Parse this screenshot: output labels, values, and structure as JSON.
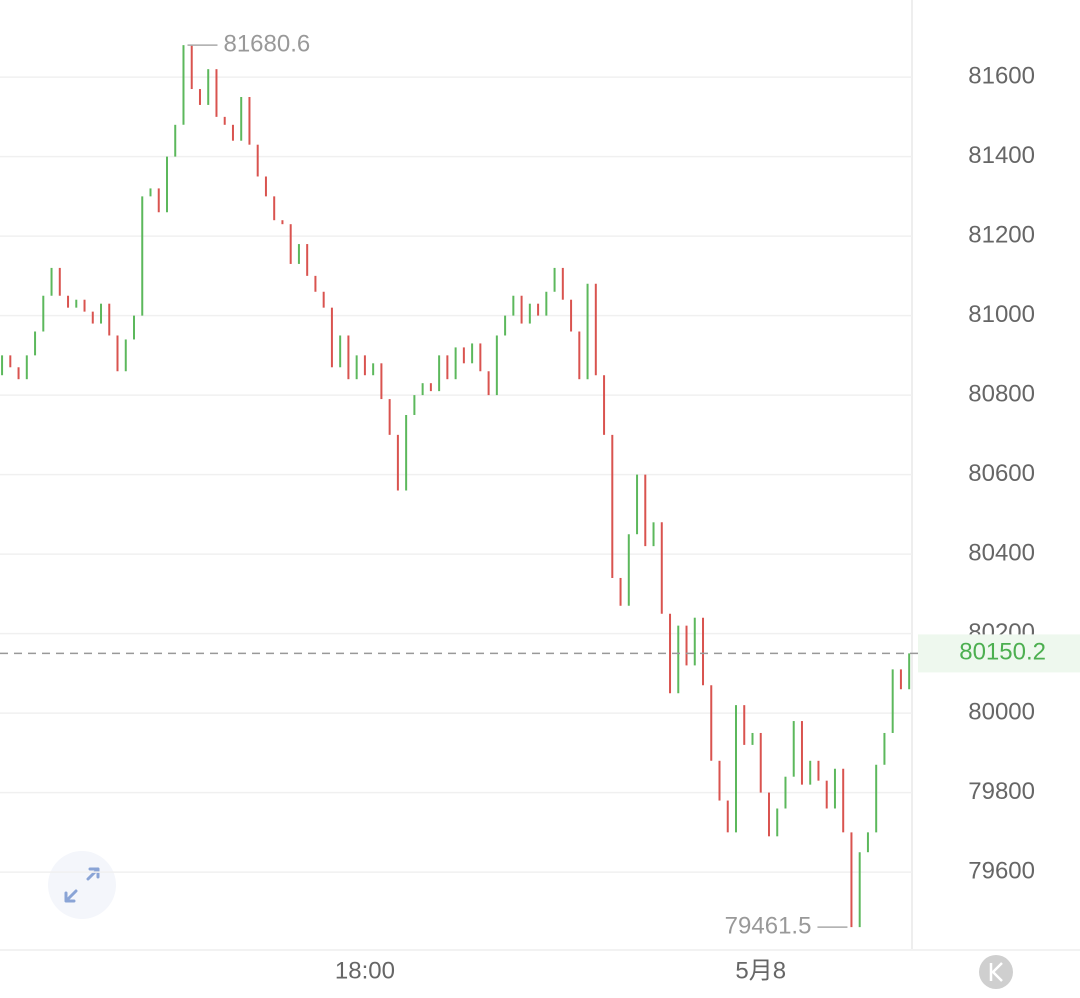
{
  "chart_data": {
    "type": "candlestick",
    "open": [
      80850,
      80900,
      80870,
      80840,
      80900,
      80960,
      81050,
      81120,
      81050,
      81020,
      81040,
      81010,
      80980,
      81030,
      80950,
      80860,
      80940,
      81000,
      81300,
      81320,
      81260,
      81400,
      81480,
      81680.6,
      81570,
      81530,
      81620,
      81500,
      81480,
      81440,
      81550,
      81430,
      81350,
      81300,
      81240,
      81230,
      81130,
      81180,
      81100,
      81060,
      81020,
      80870,
      80950,
      80840,
      80900,
      80850,
      80880,
      80790,
      80700,
      80560,
      80750,
      80800,
      80830,
      80810,
      80900,
      80840,
      80920,
      80880,
      80930,
      80860,
      80800,
      80950,
      81000,
      81050,
      80980,
      81030,
      81000,
      81060,
      81120,
      81040,
      80960,
      80840,
      81080,
      80850,
      80700,
      80340,
      80270,
      80450,
      80600,
      80420,
      80480,
      80250,
      80050,
      80220,
      80120,
      80240,
      80070,
      79880,
      79780,
      79700,
      80020,
      79920,
      79950,
      79800,
      79690,
      79760,
      79840,
      79980,
      79820,
      79880,
      79830,
      79760,
      79860,
      79700,
      79461.5,
      79650,
      79700,
      79870,
      79950,
      80110,
      80060
    ],
    "close": [
      80900,
      80870,
      80840,
      80900,
      80960,
      81050,
      81120,
      81050,
      81020,
      81040,
      81010,
      80980,
      81030,
      80950,
      80860,
      80940,
      81000,
      81300,
      81320,
      81260,
      81400,
      81480,
      81680.6,
      81570,
      81530,
      81620,
      81500,
      81480,
      81440,
      81550,
      81430,
      81350,
      81300,
      81240,
      81230,
      81130,
      81180,
      81100,
      81060,
      81020,
      80870,
      80950,
      80840,
      80900,
      80850,
      80880,
      80790,
      80700,
      80560,
      80750,
      80800,
      80830,
      80810,
      80900,
      80840,
      80920,
      80880,
      80930,
      80860,
      80800,
      80950,
      81000,
      81050,
      80980,
      81030,
      81000,
      81060,
      81120,
      81040,
      80960,
      80840,
      81080,
      80850,
      80700,
      80340,
      80270,
      80450,
      80600,
      80420,
      80480,
      80250,
      80050,
      80220,
      80120,
      80240,
      80070,
      79880,
      79780,
      79700,
      80020,
      79920,
      79950,
      79800,
      79690,
      79760,
      79840,
      79980,
      79820,
      79880,
      79830,
      79760,
      79860,
      79700,
      79461.5,
      79650,
      79700,
      79870,
      79950,
      80110,
      80060,
      80150.2
    ],
    "up_color": "#5cb85c",
    "down_color": "#d9534f",
    "xlim": [
      -0.25,
      110.1
    ],
    "xticks": [
      {
        "value": 44,
        "label": "18:00"
      },
      {
        "value": 92,
        "label": "5月8"
      }
    ],
    "ylim": [
      79404,
      81794
    ],
    "yticks": [
      79600,
      79800,
      80000,
      80200,
      80400,
      80600,
      80800,
      81000,
      81200,
      81400,
      81600
    ],
    "grid": true,
    "max_label": 81680.6,
    "min_label": 79461.5,
    "last_price": 80150.2,
    "last_price_color": "#4caf50"
  }
}
